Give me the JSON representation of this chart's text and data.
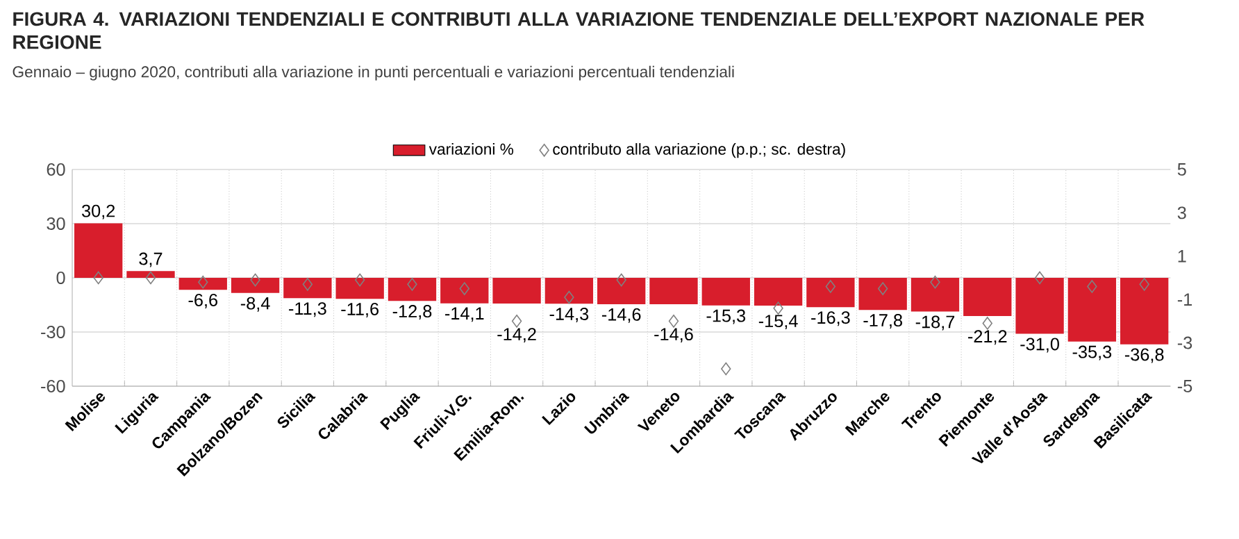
{
  "chart_data": {
    "type": "bar",
    "title": "FIGURA 4. VARIAZIONI TENDENZIALI E CONTRIBUTI ALLA VARIAZIONE TENDENZIALE DELL’EXPORT NAZIONALE PER REGIONE",
    "subtitle": "Gennaio – giugno 2020, contributi alla variazione in punti percentuali e variazioni percentuali tendenziali",
    "categories": [
      "Molise",
      "Liguria",
      "Campania",
      "Bolzano/Bozen",
      "Sicilia",
      "Calabria",
      "Puglia",
      "Friuli-V.G.",
      "Emilia-Rom.",
      "Lazio",
      "Umbria",
      "Veneto",
      "Lombardia",
      "Toscana",
      "Abruzzo",
      "Marche",
      "Trento",
      "Piemonte",
      "Valle d'Aosta",
      "Sardegna",
      "Basilicata"
    ],
    "series": [
      {
        "name": "variazioni %",
        "color": "#d81e2c",
        "values": [
          30.2,
          3.7,
          -6.6,
          -8.4,
          -11.3,
          -11.6,
          -12.8,
          -14.1,
          -14.2,
          -14.3,
          -14.6,
          -14.6,
          -15.3,
          -15.4,
          -16.3,
          -17.8,
          -18.7,
          -21.2,
          -31.0,
          -35.3,
          -36.8
        ],
        "value_labels": [
          "30,2",
          "3,7",
          "-6,6",
          "-8,4",
          "-11,3",
          "-11,6",
          "-12,8",
          "-14,1",
          "-14,2",
          "-14,3",
          "-14,6",
          "-14,6",
          "-15,3",
          "-15,4",
          "-16,3",
          "-17,8",
          "-18,7",
          "-21,2",
          "-31,0",
          "-35,3",
          "-36,8"
        ]
      },
      {
        "name": "contributo alla variazione (p.p.; sc. destra)",
        "type": "scatter",
        "axis": "y2",
        "marker": "diamond",
        "color": "#808080",
        "values": [
          0.0,
          0.0,
          -0.2,
          -0.1,
          -0.3,
          -0.1,
          -0.3,
          -0.5,
          -2.0,
          -0.9,
          -0.1,
          -2.0,
          -4.2,
          -1.4,
          -0.4,
          -0.5,
          -0.2,
          -2.1,
          0.0,
          -0.4,
          -0.3
        ]
      }
    ],
    "ylim": [
      -60,
      60
    ],
    "yticks": [
      -60,
      -30,
      0,
      30,
      60
    ],
    "y2lim": [
      -5,
      5
    ],
    "y2ticks": [
      -5,
      -3,
      -1,
      1,
      3,
      5
    ],
    "grid": true,
    "legend": "top"
  }
}
